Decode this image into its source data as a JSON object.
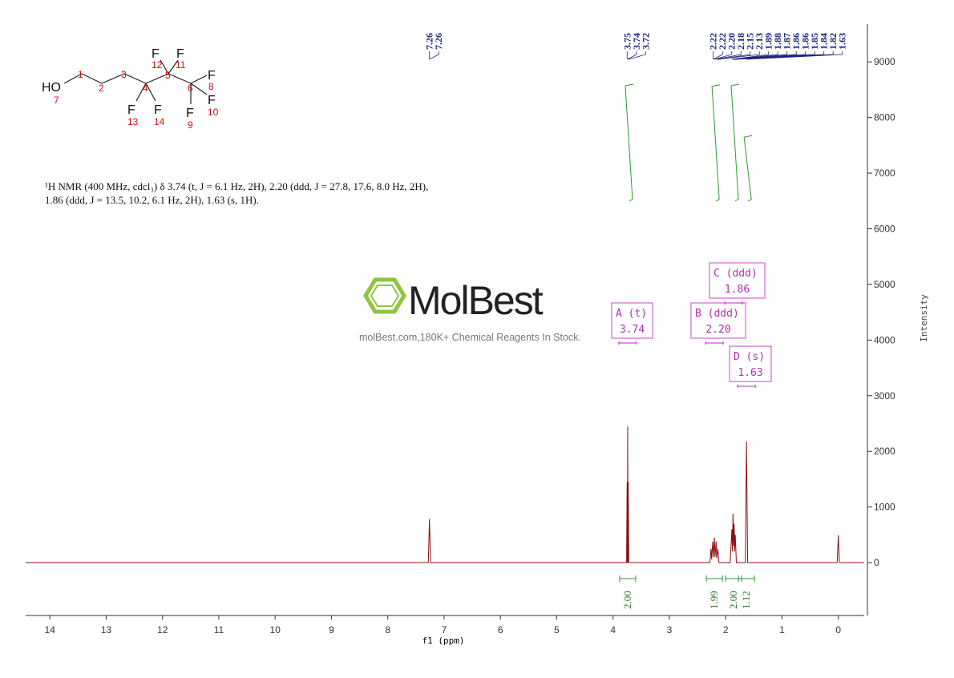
{
  "chart_data": {
    "type": "line",
    "color": "#8b1010",
    "x": [
      14.43,
      7.28,
      7.26,
      7.24,
      3.76,
      3.75,
      3.745,
      3.74,
      3.735,
      3.73,
      3.72,
      2.28,
      2.26,
      2.25,
      2.23,
      2.22,
      2.2,
      2.19,
      2.17,
      2.16,
      2.14,
      2.12,
      1.92,
      1.89,
      1.88,
      1.87,
      1.86,
      1.85,
      1.84,
      1.83,
      1.81,
      1.65,
      1.63,
      1.61,
      0.02,
      0,
      -0.02,
      -0.46
    ],
    "values": [
      0,
      0,
      780,
      0,
      0,
      1450,
      0,
      2450,
      0,
      1450,
      0,
      0,
      250,
      60,
      380,
      100,
      450,
      100,
      380,
      80,
      250,
      0,
      0,
      600,
      200,
      880,
      300,
      700,
      200,
      500,
      0,
      0,
      2180,
      0,
      0,
      490,
      0,
      0
    ],
    "xlim": [
      14.43,
      -0.46
    ],
    "xticks": [
      14,
      13,
      12,
      11,
      10,
      9,
      8,
      7,
      6,
      5,
      4,
      3,
      2,
      1,
      0
    ],
    "xlabel": "f1 (ppm)",
    "ylim": [
      -950,
      9680
    ],
    "yticks": [
      0,
      1000,
      2000,
      3000,
      4000,
      5000,
      6000,
      7000,
      8000,
      9000
    ],
    "ylabel": "Intensity",
    "peak_labels": [
      {
        "value": 7.26,
        "label": "7.26"
      },
      {
        "value": 7.26,
        "label": "7.26"
      },
      {
        "value": 3.75,
        "label": "3.75"
      },
      {
        "value": 3.74,
        "label": "3.74"
      },
      {
        "value": 3.72,
        "label": "3.72"
      },
      {
        "value": 2.22,
        "label": "2.22"
      },
      {
        "value": 2.22,
        "label": "2.22"
      },
      {
        "value": 2.2,
        "label": "2.20"
      },
      {
        "value": 2.18,
        "label": "2.18"
      },
      {
        "value": 2.15,
        "label": "2.15"
      },
      {
        "value": 2.13,
        "label": "2.13"
      },
      {
        "value": 1.89,
        "label": "1.89"
      },
      {
        "value": 1.88,
        "label": "1.88"
      },
      {
        "value": 1.87,
        "label": "1.87"
      },
      {
        "value": 1.86,
        "label": "1.86"
      },
      {
        "value": 1.86,
        "label": "1.86"
      },
      {
        "value": 1.85,
        "label": "1.85"
      },
      {
        "value": 1.84,
        "label": "1.84"
      },
      {
        "value": 1.82,
        "label": "1.82"
      },
      {
        "value": 1.63,
        "label": "1.63"
      }
    ]
  },
  "multiplets": [
    {
      "name": "A (t)",
      "shift": {
        "value": 3.74,
        "label": "3.74"
      },
      "integral": {
        "value": 2.0,
        "label": "2.00"
      }
    },
    {
      "name": "B (ddd)",
      "shift": {
        "value": 2.2,
        "label": "2.20"
      },
      "integral": {
        "value": 1.99,
        "label": "1.99"
      }
    },
    {
      "name": "C (ddd)",
      "shift": {
        "value": 1.86,
        "label": "1.86"
      },
      "integral": {
        "value": 2.0,
        "label": "2.00"
      }
    },
    {
      "name": "D (s)",
      "shift": {
        "value": 1.63,
        "label": "1.63"
      },
      "integral": {
        "value": 1.12,
        "label": "1.12"
      }
    }
  ],
  "structure": {
    "atoms": [
      "HO",
      "F",
      "F",
      "F",
      "F",
      "F",
      "F",
      "F"
    ],
    "numbers": [
      "7",
      "1",
      "2",
      "3",
      "4",
      "5",
      "6",
      "12",
      "11",
      "8",
      "9",
      "10",
      "13",
      "14"
    ]
  },
  "description": [
    "¹H NMR (400 MHz, cdcl₃) δ 3.74 (t, J = 6.1 Hz, 2H), 2.20 (ddd, J = 27.8, 17.6, 8.0 Hz, 2H),",
    "1.86 (ddd, J = 13.5, 10.2, 6.1 Hz, 2H), 1.63 (s, 1H)."
  ],
  "watermark": {
    "brand": "MolBest",
    "tagline": "molBest.com,180K+ Chemical Reagents In Stock."
  }
}
